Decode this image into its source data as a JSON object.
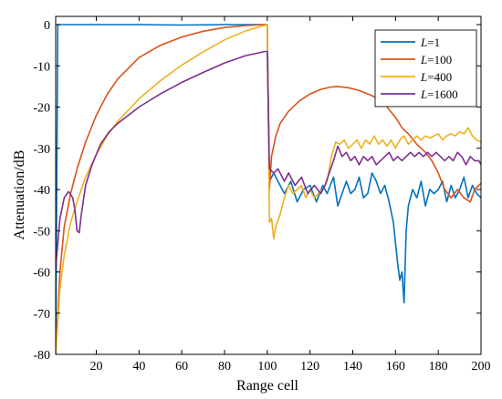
{
  "chart_data": {
    "type": "line",
    "xlabel": "Range cell",
    "ylabel": "Attenuation/dB",
    "xlim": [
      1,
      200
    ],
    "ylim": [
      -80,
      2
    ],
    "xticks": [
      20,
      40,
      60,
      80,
      100,
      120,
      140,
      160,
      180,
      200
    ],
    "yticks": [
      0,
      -10,
      -20,
      -30,
      -40,
      -50,
      -60,
      -70,
      -80
    ],
    "grid": false,
    "legend_position": "top-right",
    "series": [
      {
        "name": "L=1",
        "legend_var": "L",
        "legend_value": "=1",
        "color": "#0072BD",
        "points": [
          [
            1,
            -80
          ],
          [
            2,
            0
          ],
          [
            20,
            0
          ],
          [
            40,
            0
          ],
          [
            60,
            -0.1
          ],
          [
            80,
            0
          ],
          [
            100,
            0
          ],
          [
            101,
            -38
          ],
          [
            103,
            -36
          ],
          [
            105,
            -38
          ],
          [
            108,
            -41
          ],
          [
            111,
            -38
          ],
          [
            114,
            -43
          ],
          [
            117,
            -40
          ],
          [
            120,
            -39
          ],
          [
            123,
            -43
          ],
          [
            126,
            -39
          ],
          [
            128,
            -41
          ],
          [
            131,
            -37
          ],
          [
            133,
            -44
          ],
          [
            135,
            -41
          ],
          [
            137,
            -38
          ],
          [
            139,
            -41
          ],
          [
            141,
            -40
          ],
          [
            143,
            -37
          ],
          [
            145,
            -42
          ],
          [
            147,
            -41
          ],
          [
            149,
            -36
          ],
          [
            151,
            -38
          ],
          [
            153,
            -41
          ],
          [
            155,
            -39
          ],
          [
            157,
            -43
          ],
          [
            159,
            -48
          ],
          [
            161,
            -58
          ],
          [
            162,
            -62
          ],
          [
            163,
            -60
          ],
          [
            164,
            -67.5
          ],
          [
            165,
            -50
          ],
          [
            166,
            -44
          ],
          [
            168,
            -40
          ],
          [
            170,
            -42
          ],
          [
            172,
            -38
          ],
          [
            174,
            -44
          ],
          [
            176,
            -40
          ],
          [
            178,
            -41
          ],
          [
            180,
            -40
          ],
          [
            182,
            -38
          ],
          [
            184,
            -43
          ],
          [
            186,
            -39
          ],
          [
            188,
            -42
          ],
          [
            190,
            -40
          ],
          [
            192,
            -37
          ],
          [
            194,
            -42
          ],
          [
            196,
            -39
          ],
          [
            198,
            -41
          ],
          [
            200,
            -42
          ]
        ]
      },
      {
        "name": "L=100",
        "legend_var": "L",
        "legend_value": "=100",
        "color": "#D95319",
        "points": [
          [
            1,
            -80
          ],
          [
            3,
            -60
          ],
          [
            5,
            -49
          ],
          [
            8,
            -41
          ],
          [
            11,
            -35
          ],
          [
            15,
            -28.5
          ],
          [
            20,
            -22
          ],
          [
            25,
            -17
          ],
          [
            30,
            -13.2
          ],
          [
            40,
            -8
          ],
          [
            50,
            -5
          ],
          [
            60,
            -3
          ],
          [
            70,
            -1.6
          ],
          [
            80,
            -0.7
          ],
          [
            90,
            -0.2
          ],
          [
            100,
            0
          ],
          [
            101,
            -40
          ],
          [
            102,
            -32
          ],
          [
            104,
            -27
          ],
          [
            106,
            -24
          ],
          [
            110,
            -21
          ],
          [
            115,
            -18.5
          ],
          [
            120,
            -16.8
          ],
          [
            125,
            -15.7
          ],
          [
            130,
            -15.1
          ],
          [
            133,
            -15
          ],
          [
            138,
            -15.3
          ],
          [
            143,
            -16
          ],
          [
            148,
            -17
          ],
          [
            152,
            -18
          ],
          [
            156,
            -20
          ],
          [
            160,
            -22.5
          ],
          [
            163,
            -25
          ],
          [
            166,
            -26.5
          ],
          [
            170,
            -29
          ],
          [
            174,
            -31
          ],
          [
            177,
            -33
          ],
          [
            180,
            -36
          ],
          [
            183,
            -40
          ],
          [
            186,
            -42
          ],
          [
            189,
            -40
          ],
          [
            192,
            -42
          ],
          [
            195,
            -43
          ],
          [
            197,
            -40
          ],
          [
            200,
            -38.5
          ]
        ]
      },
      {
        "name": "L=400",
        "legend_var": "L",
        "legend_value": "=400",
        "color": "#EDB120",
        "points": [
          [
            1,
            -80
          ],
          [
            3,
            -64
          ],
          [
            5,
            -56
          ],
          [
            8,
            -48
          ],
          [
            11,
            -43
          ],
          [
            15,
            -37
          ],
          [
            20,
            -31.5
          ],
          [
            25,
            -27
          ],
          [
            30,
            -23.5
          ],
          [
            40,
            -18
          ],
          [
            50,
            -13.6
          ],
          [
            60,
            -9.8
          ],
          [
            70,
            -6.6
          ],
          [
            80,
            -3.7
          ],
          [
            90,
            -1.5
          ],
          [
            100,
            0
          ],
          [
            101,
            -48
          ],
          [
            102,
            -47
          ],
          [
            103,
            -52
          ],
          [
            104,
            -49
          ],
          [
            106,
            -46
          ],
          [
            108,
            -42
          ],
          [
            110,
            -39
          ],
          [
            112,
            -41
          ],
          [
            114,
            -40
          ],
          [
            116,
            -39
          ],
          [
            118,
            -42
          ],
          [
            120,
            -40
          ],
          [
            122,
            -42
          ],
          [
            124,
            -41
          ],
          [
            126,
            -40
          ],
          [
            128,
            -38
          ],
          [
            130,
            -32
          ],
          [
            132,
            -28.5
          ],
          [
            134,
            -29
          ],
          [
            136,
            -28
          ],
          [
            138,
            -30
          ],
          [
            140,
            -29
          ],
          [
            142,
            -28
          ],
          [
            144,
            -30
          ],
          [
            146,
            -28
          ],
          [
            148,
            -29
          ],
          [
            150,
            -27
          ],
          [
            152,
            -29
          ],
          [
            154,
            -28
          ],
          [
            156,
            -29.5
          ],
          [
            158,
            -28
          ],
          [
            160,
            -30
          ],
          [
            162,
            -28
          ],
          [
            164,
            -27
          ],
          [
            166,
            -29
          ],
          [
            168,
            -28
          ],
          [
            170,
            -27
          ],
          [
            172,
            -28
          ],
          [
            174,
            -27
          ],
          [
            176,
            -27.5
          ],
          [
            178,
            -27
          ],
          [
            180,
            -26.5
          ],
          [
            182,
            -28
          ],
          [
            184,
            -27
          ],
          [
            186,
            -26.5
          ],
          [
            188,
            -27
          ],
          [
            190,
            -26
          ],
          [
            192,
            -26.5
          ],
          [
            194,
            -25
          ],
          [
            196,
            -27
          ],
          [
            198,
            -28
          ],
          [
            200,
            -28.5
          ]
        ]
      },
      {
        "name": "L=1600",
        "legend_var": "L",
        "legend_value": "=1600",
        "color": "#7E2F8E",
        "points": [
          [
            1,
            -59
          ],
          [
            3,
            -47
          ],
          [
            5,
            -42
          ],
          [
            7,
            -40.5
          ],
          [
            9,
            -42
          ],
          [
            10,
            -45
          ],
          [
            11,
            -50
          ],
          [
            12,
            -50.5
          ],
          [
            13,
            -46
          ],
          [
            15,
            -39
          ],
          [
            18,
            -34
          ],
          [
            22,
            -29
          ],
          [
            26,
            -26
          ],
          [
            30,
            -24
          ],
          [
            40,
            -20
          ],
          [
            50,
            -16.8
          ],
          [
            60,
            -14
          ],
          [
            70,
            -11.6
          ],
          [
            80,
            -9.3
          ],
          [
            90,
            -7.5
          ],
          [
            99,
            -6.5
          ],
          [
            100,
            -6.5
          ],
          [
            101,
            -35
          ],
          [
            103,
            -36
          ],
          [
            105,
            -35
          ],
          [
            108,
            -38
          ],
          [
            110,
            -36
          ],
          [
            113,
            -39
          ],
          [
            116,
            -37
          ],
          [
            119,
            -41
          ],
          [
            122,
            -39
          ],
          [
            125,
            -41
          ],
          [
            127,
            -39
          ],
          [
            129,
            -36
          ],
          [
            131,
            -33
          ],
          [
            133,
            -29.5
          ],
          [
            135,
            -32
          ],
          [
            137,
            -31
          ],
          [
            139,
            -33
          ],
          [
            141,
            -32
          ],
          [
            143,
            -34
          ],
          [
            145,
            -32
          ],
          [
            147,
            -33
          ],
          [
            149,
            -32
          ],
          [
            151,
            -34
          ],
          [
            153,
            -33
          ],
          [
            155,
            -32
          ],
          [
            157,
            -31
          ],
          [
            159,
            -33
          ],
          [
            161,
            -32
          ],
          [
            163,
            -33
          ],
          [
            165,
            -32
          ],
          [
            167,
            -31
          ],
          [
            169,
            -32
          ],
          [
            171,
            -31
          ],
          [
            173,
            -32
          ],
          [
            175,
            -31
          ],
          [
            177,
            -32
          ],
          [
            179,
            -31
          ],
          [
            181,
            -32
          ],
          [
            183,
            -33
          ],
          [
            185,
            -32
          ],
          [
            187,
            -33
          ],
          [
            189,
            -31
          ],
          [
            191,
            -32
          ],
          [
            193,
            -34
          ],
          [
            195,
            -32
          ],
          [
            197,
            -33
          ],
          [
            199,
            -33
          ],
          [
            200,
            -34
          ]
        ]
      }
    ]
  }
}
